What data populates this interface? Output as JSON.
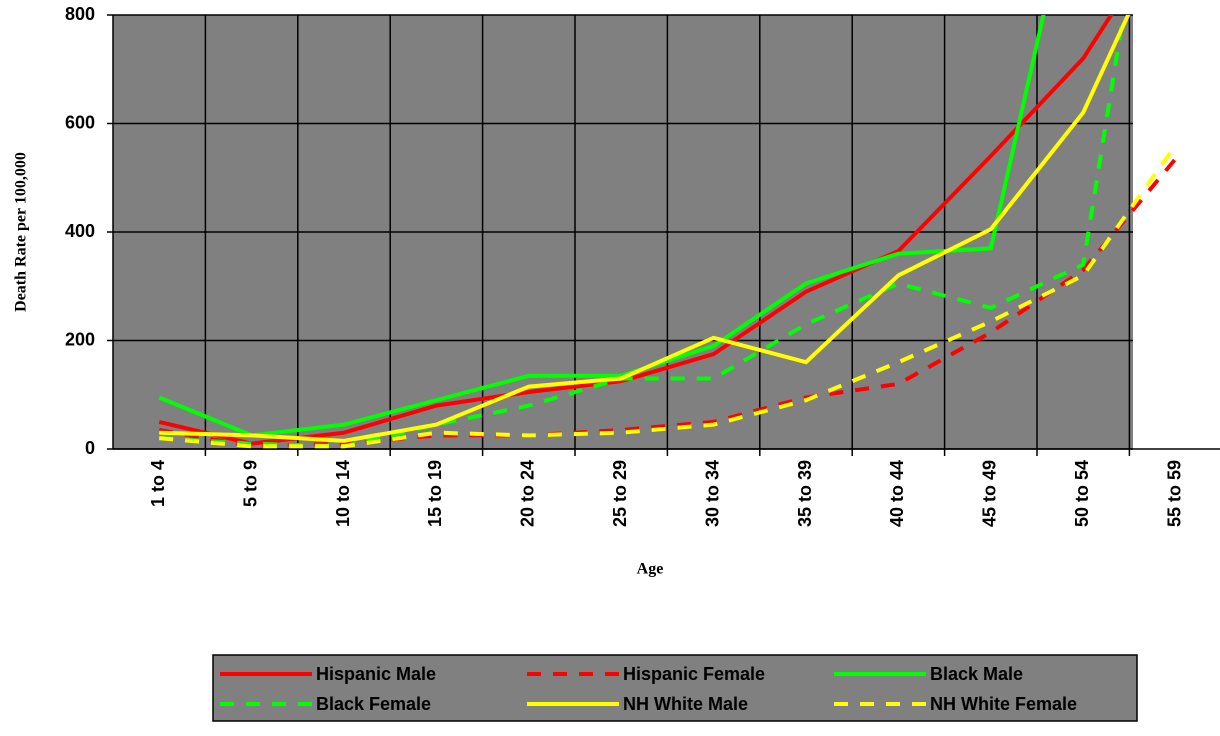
{
  "chart_data": {
    "type": "line",
    "x_label": "Age",
    "y_label": "Death Rate per 100,000",
    "categories": [
      "1 to 4",
      "5 to 9",
      "10 to 14",
      "15 to 19",
      "20 to 24",
      "25 to 29",
      "30 to 34",
      "35 to 39",
      "40 to 44",
      "45 to 49",
      "50 to 54",
      "55 to 59"
    ],
    "series": [
      {
        "name": "Hispanic  Male",
        "color": "#ff0000",
        "dash": false,
        "values": [
          50,
          10,
          30,
          80,
          105,
          125,
          175,
          290,
          365,
          540,
          720,
          985
        ]
      },
      {
        "name": "Hispanic Female",
        "color": "#ff0000",
        "dash": true,
        "values": [
          35,
          5,
          10,
          25,
          25,
          35,
          50,
          95,
          120,
          215,
          330,
          535
        ]
      },
      {
        "name": "Black Male",
        "color": "#00ff00",
        "dash": false,
        "values": [
          95,
          25,
          45,
          90,
          135,
          135,
          190,
          305,
          360,
          370,
          1125,
          null
        ]
      },
      {
        "name": "Black Female",
        "color": "#00ff00",
        "dash": true,
        "values": [
          20,
          10,
          5,
          45,
          80,
          130,
          130,
          230,
          305,
          260,
          340,
          1400
        ]
      },
      {
        "name": "NH White Male",
        "color": "#ffff00",
        "dash": false,
        "values": [
          30,
          25,
          15,
          45,
          115,
          130,
          205,
          160,
          320,
          405,
          620,
          990
        ]
      },
      {
        "name": "NH White Female",
        "color": "#ffff00",
        "dash": true,
        "values": [
          20,
          5,
          5,
          30,
          25,
          30,
          45,
          90,
          160,
          235,
          320,
          560
        ]
      }
    ],
    "ylim": [
      0,
      800
    ],
    "yticks": [
      0,
      200,
      400,
      600,
      800
    ],
    "grid": true,
    "legend": "bottom"
  }
}
